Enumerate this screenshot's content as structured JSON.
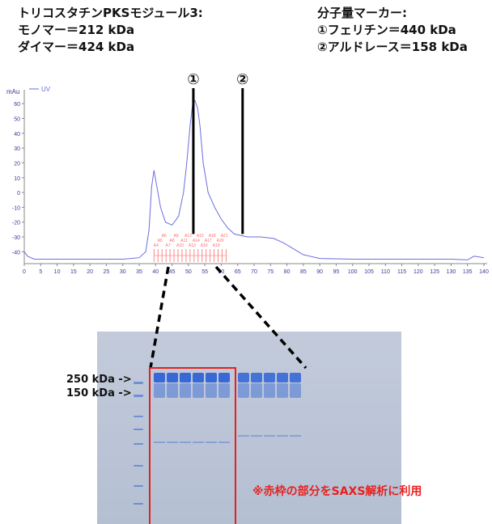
{
  "header": {
    "left": [
      "トリコスタチンPKSモジュール3:",
      "モノマー＝212 kDa",
      "ダイマー＝424 kDa"
    ],
    "right": [
      "分子量マーカー:",
      "①フェリチン＝440 kDa",
      "②アルドレース＝158 kDa"
    ]
  },
  "chart_data": {
    "type": "line",
    "legend": [
      "UV"
    ],
    "ylabel": "mAu",
    "ylim": [
      -48,
      65
    ],
    "xlim": [
      0,
      140
    ],
    "yticks": [
      60,
      50,
      40,
      30,
      20,
      10,
      0,
      -10,
      -20,
      -30,
      -40
    ],
    "xticks": [
      0,
      5,
      10,
      15,
      20,
      25,
      30,
      35,
      40,
      45,
      50,
      55,
      60,
      65,
      70,
      75,
      80,
      85,
      90,
      95,
      100,
      105,
      110,
      115,
      120,
      125,
      130,
      135,
      140
    ],
    "series": [
      {
        "name": "UV",
        "x": [
          0,
          1,
          3,
          10,
          20,
          30,
          35,
          37,
          38,
          38.8,
          39.5,
          40.3,
          41.5,
          43,
          45,
          47,
          48.5,
          49.5,
          50.5,
          51.3,
          52,
          52.8,
          53.5,
          54.5,
          56,
          58,
          60,
          62,
          64,
          66,
          68,
          72,
          76,
          79,
          82,
          85,
          90,
          100,
          110,
          120,
          130,
          135,
          137,
          140
        ],
        "y": [
          -40,
          -43,
          -45,
          -45,
          -45,
          -45,
          -44,
          -40,
          -25,
          4,
          15,
          5,
          -10,
          -20,
          -22,
          -16,
          0,
          20,
          45,
          60,
          62,
          57,
          45,
          20,
          0,
          -10,
          -18,
          -24,
          -28,
          -29,
          -30,
          -30,
          -31,
          -34,
          -38,
          -42,
          -44.5,
          -45,
          -45,
          -45,
          -45,
          -45.5,
          -43,
          -44
        ]
      }
    ],
    "markers": [
      {
        "label": "①",
        "x": 51.5
      },
      {
        "label": "②",
        "x": 66.5
      }
    ],
    "fraction_range": [
      39.5,
      61.5
    ],
    "fraction_labels": [
      "A4",
      "A5",
      "A6",
      "A7",
      "A8",
      "A9",
      "A10",
      "A11",
      "A12",
      "A13",
      "A14",
      "A15",
      "A16",
      "A17",
      "A18",
      "A19",
      "A20",
      "A21"
    ]
  },
  "gel": {
    "ladder": [
      "250 kDa ->",
      "150 kDa ->"
    ],
    "note": "※赤枠の部分をSAXS解析に利用"
  },
  "colors": {
    "line": "#6c6ce0",
    "marker": "#000000",
    "fraction": "#ff6b6b",
    "highlight": "#ea1b1b",
    "gel_bg": "#b9c4d7",
    "band": "#2f63d6"
  }
}
